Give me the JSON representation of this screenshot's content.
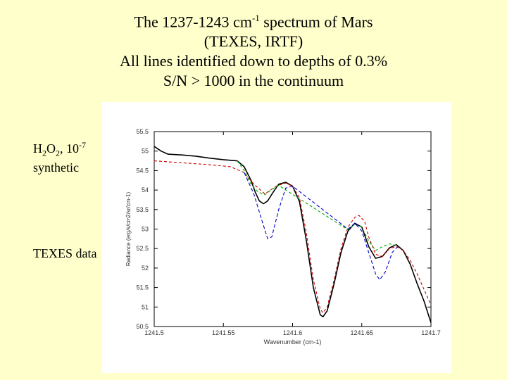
{
  "slide": {
    "title_line1_pre": "The 1237-1243 cm",
    "title_line1_sup": "-1",
    "title_line1_post": " spectrum of Mars",
    "title_line2": "(TEXES, IRTF)",
    "title_line3": "All lines identified down to depths of 0.3%",
    "title_line4": "S/N > 1000 in the continuum",
    "label_h2o2_prefix": "H",
    "label_h2o2_sub1": "2",
    "label_h2o2_mid": "O",
    "label_h2o2_sub2": "2",
    "label_h2o2_sep": ", 10",
    "label_h2o2_exp": "-7",
    "label_synthetic": "synthetic",
    "label_texes": "TEXES data"
  },
  "chart_data": {
    "type": "line",
    "xlabel": "Wavenumber (cm-1)",
    "ylabel": "Radiance (erg/s/cm2/sr/cm-1)",
    "xlim": [
      1241.5,
      1241.7
    ],
    "ylim": [
      50.5,
      55.5
    ],
    "x_ticks": [
      1241.5,
      1241.55,
      1241.6,
      1241.65,
      1241.7
    ],
    "x_tick_labels": [
      "1241.5",
      "1241.55",
      "1241.6",
      "1241.65",
      "1241.7"
    ],
    "y_ticks": [
      50.5,
      51,
      51.5,
      52,
      52.5,
      53,
      53.5,
      54,
      54.5,
      55,
      55.5
    ],
    "y_tick_labels": [
      "50.5",
      "51",
      "51.5",
      "52",
      "52.5",
      "53",
      "53.5",
      "54",
      "54.5",
      "55",
      "55.5"
    ],
    "series": [
      {
        "color": "#000000",
        "dash": "",
        "points": [
          [
            1241.5,
            55.12
          ],
          [
            1241.505,
            55.0
          ],
          [
            1241.51,
            54.92
          ],
          [
            1241.52,
            54.9
          ],
          [
            1241.53,
            54.87
          ],
          [
            1241.54,
            54.82
          ],
          [
            1241.55,
            54.78
          ],
          [
            1241.56,
            54.75
          ],
          [
            1241.565,
            54.6
          ],
          [
            1241.57,
            54.25
          ],
          [
            1241.573,
            53.95
          ],
          [
            1241.576,
            53.72
          ],
          [
            1241.579,
            53.65
          ],
          [
            1241.582,
            53.72
          ],
          [
            1241.586,
            53.95
          ],
          [
            1241.59,
            54.15
          ],
          [
            1241.595,
            54.2
          ],
          [
            1241.6,
            54.1
          ],
          [
            1241.605,
            53.7
          ],
          [
            1241.61,
            52.7
          ],
          [
            1241.615,
            51.5
          ],
          [
            1241.62,
            50.8
          ],
          [
            1241.622,
            50.75
          ],
          [
            1241.625,
            50.9
          ],
          [
            1241.63,
            51.6
          ],
          [
            1241.635,
            52.4
          ],
          [
            1241.64,
            52.95
          ],
          [
            1241.645,
            53.15
          ],
          [
            1241.65,
            53.05
          ],
          [
            1241.655,
            52.55
          ],
          [
            1241.66,
            52.25
          ],
          [
            1241.665,
            52.3
          ],
          [
            1241.67,
            52.52
          ],
          [
            1241.675,
            52.6
          ],
          [
            1241.68,
            52.45
          ],
          [
            1241.685,
            52.1
          ],
          [
            1241.69,
            51.6
          ],
          [
            1241.695,
            51.15
          ],
          [
            1241.7,
            50.6
          ]
        ]
      },
      {
        "color": "#cc0000",
        "dash": "4,3",
        "points": [
          [
            1241.5,
            54.75
          ],
          [
            1241.52,
            54.7
          ],
          [
            1241.54,
            54.65
          ],
          [
            1241.555,
            54.6
          ],
          [
            1241.565,
            54.45
          ],
          [
            1241.572,
            54.15
          ],
          [
            1241.58,
            53.9
          ],
          [
            1241.588,
            54.1
          ],
          [
            1241.595,
            54.18
          ],
          [
            1241.6,
            54.1
          ],
          [
            1241.605,
            53.8
          ],
          [
            1241.61,
            52.9
          ],
          [
            1241.615,
            51.7
          ],
          [
            1241.62,
            50.95
          ],
          [
            1241.622,
            50.85
          ],
          [
            1241.625,
            51.0
          ],
          [
            1241.63,
            51.7
          ],
          [
            1241.635,
            52.5
          ],
          [
            1241.64,
            53.05
          ],
          [
            1241.645,
            53.3
          ],
          [
            1241.648,
            53.35
          ],
          [
            1241.652,
            53.2
          ],
          [
            1241.655,
            52.8
          ],
          [
            1241.66,
            52.35
          ],
          [
            1241.665,
            52.3
          ],
          [
            1241.67,
            52.5
          ],
          [
            1241.675,
            52.55
          ],
          [
            1241.68,
            52.45
          ],
          [
            1241.685,
            52.2
          ],
          [
            1241.69,
            51.85
          ],
          [
            1241.695,
            51.45
          ],
          [
            1241.7,
            51.05
          ]
        ]
      },
      {
        "color": "#00aa00",
        "dash": "4,3",
        "points": [
          [
            1241.56,
            54.75
          ],
          [
            1241.565,
            54.5
          ],
          [
            1241.57,
            54.15
          ],
          [
            1241.575,
            53.95
          ],
          [
            1241.58,
            53.88
          ],
          [
            1241.585,
            54.02
          ],
          [
            1241.59,
            54.12
          ],
          [
            1241.64,
            52.98
          ],
          [
            1241.645,
            53.12
          ],
          [
            1241.65,
            53.05
          ],
          [
            1241.655,
            52.7
          ],
          [
            1241.66,
            52.45
          ],
          [
            1241.665,
            52.55
          ],
          [
            1241.67,
            52.62
          ],
          [
            1241.675,
            52.58
          ]
        ]
      },
      {
        "color": "#0000cc",
        "dash": "5,3",
        "points": [
          [
            1241.565,
            54.45
          ],
          [
            1241.572,
            53.9
          ],
          [
            1241.578,
            53.2
          ],
          [
            1241.582,
            52.75
          ],
          [
            1241.585,
            52.8
          ],
          [
            1241.59,
            53.5
          ],
          [
            1241.595,
            54.05
          ],
          [
            1241.6,
            54.1
          ],
          [
            1241.64,
            53.0
          ],
          [
            1241.645,
            53.15
          ],
          [
            1241.65,
            52.95
          ],
          [
            1241.655,
            52.4
          ],
          [
            1241.66,
            51.85
          ],
          [
            1241.663,
            51.7
          ],
          [
            1241.667,
            51.9
          ],
          [
            1241.672,
            52.4
          ],
          [
            1241.676,
            52.55
          ]
        ]
      }
    ]
  }
}
